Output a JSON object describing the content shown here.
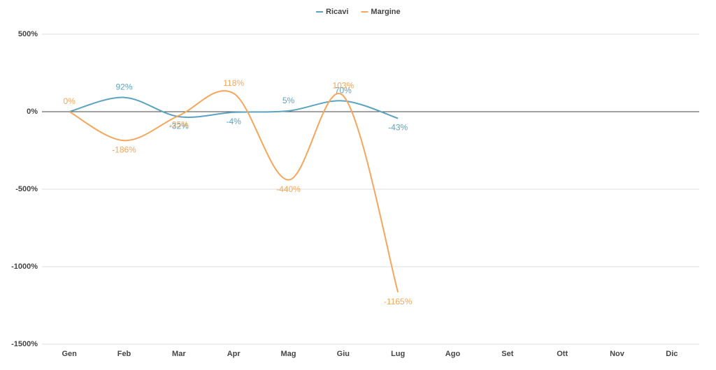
{
  "chart_data": {
    "type": "line",
    "categories": [
      "Gen",
      "Feb",
      "Mar",
      "Apr",
      "Mag",
      "Giu",
      "Lug",
      "Ago",
      "Set",
      "Ott",
      "Nov",
      "Dic"
    ],
    "series": [
      {
        "name": "Ricavi",
        "color": "#5ba3c0",
        "values": [
          0,
          92,
          -32,
          -4,
          5,
          70,
          -43,
          null,
          null,
          null,
          null,
          null
        ],
        "value_labels": [
          null,
          "92%",
          "-32%",
          "-4%",
          "5%",
          "70%",
          "-43%",
          null,
          null,
          null,
          null,
          null
        ]
      },
      {
        "name": "Margine",
        "color": "#f5a65b",
        "values": [
          0,
          -186,
          -25,
          118,
          -440,
          103,
          -1165,
          null,
          null,
          null,
          null,
          null
        ],
        "value_labels": [
          "0%",
          "-186%",
          "-25%",
          "118%",
          "-440%",
          "103%",
          "-1165%",
          null,
          null,
          null,
          null,
          null
        ]
      }
    ],
    "ylim": [
      -1500,
      500
    ],
    "yticks": [
      {
        "value": 500,
        "label": "500%"
      },
      {
        "value": 0,
        "label": "0%"
      },
      {
        "value": -500,
        "label": "-500%"
      },
      {
        "value": -1000,
        "label": "-1000%"
      },
      {
        "value": -1500,
        "label": "-1500%"
      }
    ],
    "grid": true,
    "legend": "top"
  }
}
